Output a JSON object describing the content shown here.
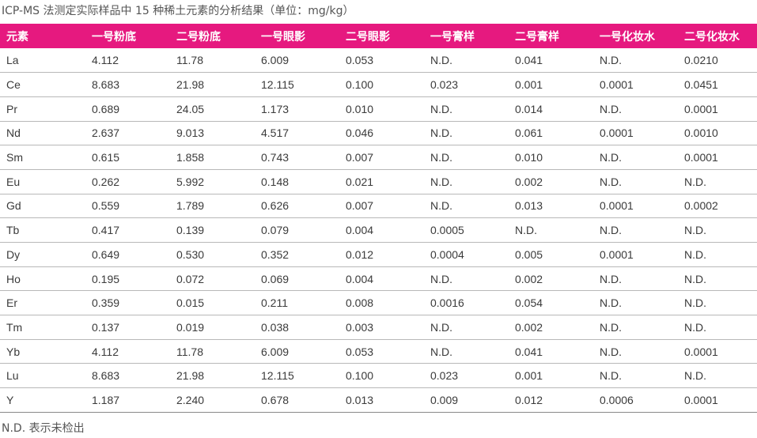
{
  "caption": "ICP-MS 法测定实际样品中 15 种稀土元素的分析结果（单位：mg/kg）",
  "columns": [
    "元素",
    "一号粉底",
    "二号粉底",
    "一号眼影",
    "二号眼影",
    "一号膏样",
    "二号膏样",
    "一号化妆水",
    "二号化妆水"
  ],
  "rows": [
    [
      "La",
      "4.112",
      "11.78",
      "6.009",
      "0.053",
      "N.D.",
      "0.041",
      "N.D.",
      "0.0210"
    ],
    [
      "Ce",
      "8.683",
      "21.98",
      "12.115",
      "0.100",
      "0.023",
      "0.001",
      "0.0001",
      "0.0451"
    ],
    [
      "Pr",
      "0.689",
      "24.05",
      "1.173",
      "0.010",
      "N.D.",
      "0.014",
      "N.D.",
      "0.0001"
    ],
    [
      "Nd",
      "2.637",
      "9.013",
      "4.517",
      "0.046",
      "N.D.",
      "0.061",
      "0.0001",
      "0.0010"
    ],
    [
      "Sm",
      "0.615",
      "1.858",
      "0.743",
      "0.007",
      "N.D.",
      "0.010",
      "N.D.",
      "0.0001"
    ],
    [
      "Eu",
      "0.262",
      "5.992",
      "0.148",
      "0.021",
      "N.D.",
      "0.002",
      "N.D.",
      "N.D."
    ],
    [
      "Gd",
      "0.559",
      "1.789",
      "0.626",
      "0.007",
      "N.D.",
      "0.013",
      "0.0001",
      "0.0002"
    ],
    [
      "Tb",
      "0.417",
      "0.139",
      "0.079",
      "0.004",
      "0.0005",
      "N.D.",
      "N.D.",
      "N.D."
    ],
    [
      "Dy",
      "0.649",
      "0.530",
      "0.352",
      "0.012",
      "0.0004",
      "0.005",
      "0.0001",
      "N.D."
    ],
    [
      "Ho",
      "0.195",
      "0.072",
      "0.069",
      "0.004",
      "N.D.",
      "0.002",
      "N.D.",
      "N.D."
    ],
    [
      "Er",
      "0.359",
      "0.015",
      "0.211",
      "0.008",
      "0.0016",
      "0.054",
      "N.D.",
      "N.D."
    ],
    [
      "Tm",
      "0.137",
      "0.019",
      "0.038",
      "0.003",
      "N.D.",
      "0.002",
      "N.D.",
      "N.D."
    ],
    [
      "Yb",
      "4.112",
      "11.78",
      "6.009",
      "0.053",
      "N.D.",
      "0.041",
      "N.D.",
      "0.0001"
    ],
    [
      "Lu",
      "8.683",
      "21.98",
      "12.115",
      "0.100",
      "0.023",
      "0.001",
      "N.D.",
      "N.D."
    ],
    [
      "Y",
      "1.187",
      "2.240",
      "0.678",
      "0.013",
      "0.009",
      "0.012",
      "0.0006",
      "0.0001"
    ]
  ],
  "footnote": "N.D. 表示未检出",
  "colors": {
    "header_bg": "#e6197f",
    "header_text": "#ffffff",
    "rule": "#b8b8b8"
  }
}
